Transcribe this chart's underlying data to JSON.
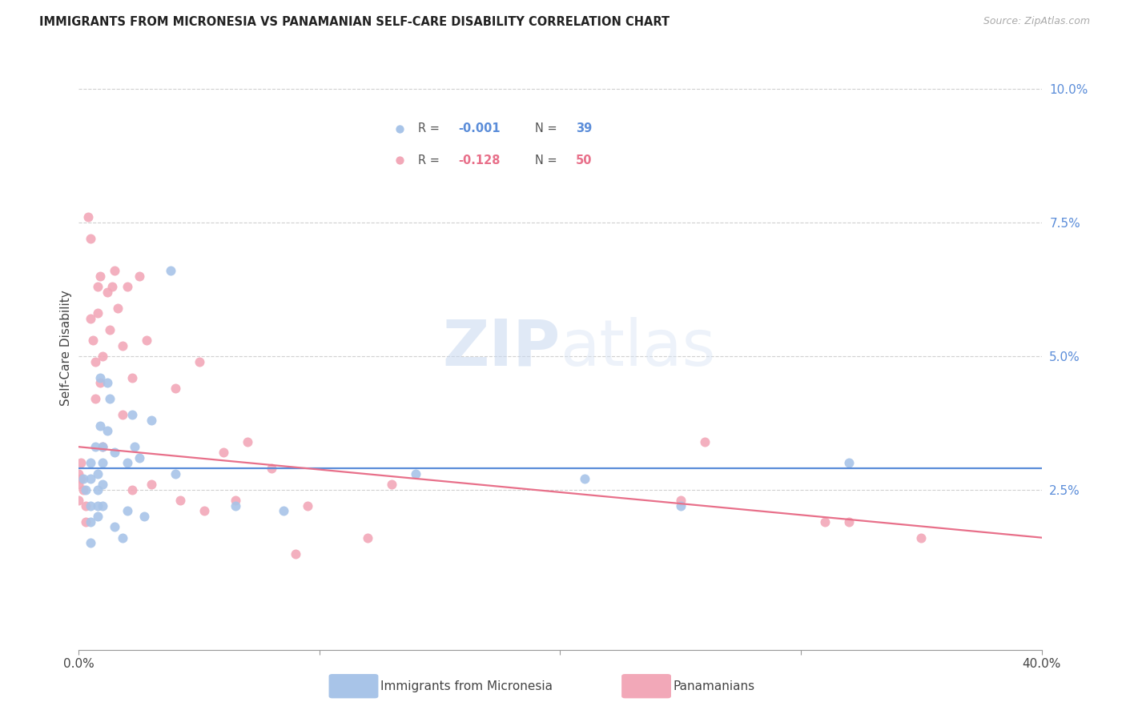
{
  "title": "IMMIGRANTS FROM MICRONESIA VS PANAMANIAN SELF-CARE DISABILITY CORRELATION CHART",
  "source": "Source: ZipAtlas.com",
  "ylabel": "Self-Care Disability",
  "ylabel_right_labels": [
    "10.0%",
    "7.5%",
    "5.0%",
    "2.5%"
  ],
  "ylabel_right_values": [
    0.1,
    0.075,
    0.05,
    0.025
  ],
  "xlim": [
    0.0,
    0.4
  ],
  "ylim": [
    -0.005,
    0.108
  ],
  "color_blue": "#a8c4e8",
  "color_pink": "#f2a8b8",
  "color_blue_line": "#5b8dd9",
  "color_pink_line": "#e8708a",
  "color_r_blue": "#5b8dd9",
  "color_r_pink": "#e8708a",
  "watermark_zip": "ZIP",
  "watermark_atlas": "atlas",
  "blue_x": [
    0.002,
    0.003,
    0.005,
    0.005,
    0.005,
    0.005,
    0.005,
    0.007,
    0.008,
    0.008,
    0.008,
    0.008,
    0.009,
    0.009,
    0.01,
    0.01,
    0.01,
    0.01,
    0.012,
    0.012,
    0.013,
    0.015,
    0.015,
    0.018,
    0.02,
    0.02,
    0.022,
    0.023,
    0.025,
    0.027,
    0.03,
    0.038,
    0.14,
    0.21,
    0.25,
    0.32,
    0.04,
    0.065,
    0.085
  ],
  "blue_y": [
    0.027,
    0.025,
    0.03,
    0.027,
    0.022,
    0.019,
    0.015,
    0.033,
    0.028,
    0.025,
    0.022,
    0.02,
    0.046,
    0.037,
    0.033,
    0.03,
    0.026,
    0.022,
    0.045,
    0.036,
    0.042,
    0.032,
    0.018,
    0.016,
    0.03,
    0.021,
    0.039,
    0.033,
    0.031,
    0.02,
    0.038,
    0.066,
    0.028,
    0.027,
    0.022,
    0.03,
    0.028,
    0.022,
    0.021
  ],
  "pink_x": [
    0.0,
    0.0,
    0.0,
    0.001,
    0.001,
    0.002,
    0.003,
    0.003,
    0.004,
    0.005,
    0.005,
    0.006,
    0.007,
    0.007,
    0.008,
    0.008,
    0.009,
    0.009,
    0.01,
    0.01,
    0.012,
    0.013,
    0.014,
    0.015,
    0.016,
    0.018,
    0.018,
    0.02,
    0.022,
    0.022,
    0.025,
    0.028,
    0.03,
    0.04,
    0.042,
    0.05,
    0.052,
    0.06,
    0.065,
    0.07,
    0.08,
    0.09,
    0.095,
    0.12,
    0.13,
    0.25,
    0.26,
    0.31,
    0.32,
    0.35
  ],
  "pink_y": [
    0.028,
    0.026,
    0.023,
    0.03,
    0.027,
    0.025,
    0.022,
    0.019,
    0.076,
    0.072,
    0.057,
    0.053,
    0.049,
    0.042,
    0.063,
    0.058,
    0.065,
    0.045,
    0.05,
    0.033,
    0.062,
    0.055,
    0.063,
    0.066,
    0.059,
    0.052,
    0.039,
    0.063,
    0.046,
    0.025,
    0.065,
    0.053,
    0.026,
    0.044,
    0.023,
    0.049,
    0.021,
    0.032,
    0.023,
    0.034,
    0.029,
    0.013,
    0.022,
    0.016,
    0.026,
    0.023,
    0.034,
    0.019,
    0.019,
    0.016
  ],
  "blue_trend_x": [
    0.0,
    0.4
  ],
  "blue_trend_y": [
    0.029,
    0.029
  ],
  "pink_trend_x": [
    0.0,
    0.4
  ],
  "pink_trend_y": [
    0.033,
    0.016
  ]
}
